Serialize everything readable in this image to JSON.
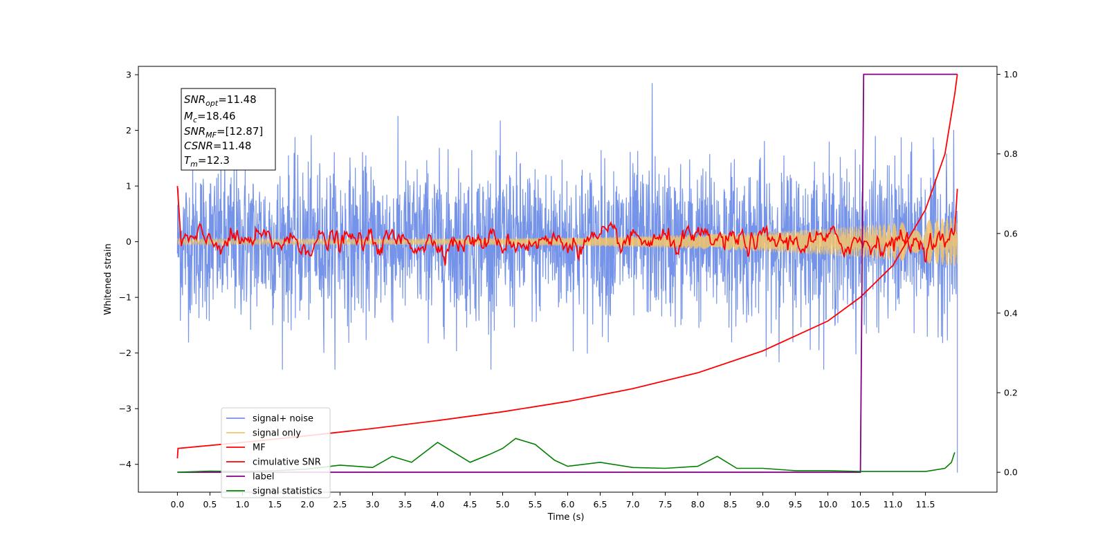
{
  "chart_data": {
    "type": "line",
    "xlabel": "Time (s)",
    "ylabel": "Whitened strain",
    "xlim": [
      -0.6,
      12.6
    ],
    "ylim_left": [
      -4.5,
      3.15
    ],
    "ylim_right": [
      -0.05,
      1.02
    ],
    "x_ticks": [
      "0.0",
      "0.5",
      "1.0",
      "1.5",
      "2.0",
      "2.5",
      "3.0",
      "3.5",
      "4.0",
      "4.5",
      "5.0",
      "5.5",
      "6.0",
      "6.5",
      "7.0",
      "7.5",
      "8.0",
      "8.5",
      "9.0",
      "9.5",
      "10.0",
      "10.5",
      "11.0",
      "11.5"
    ],
    "y_ticks_left": [
      "3",
      "2",
      "1",
      "0",
      "−1",
      "−2",
      "−3",
      "−4"
    ],
    "y_ticks_right": [
      "1.0",
      "0.8",
      "0.6",
      "0.4",
      "0.2",
      "0.0"
    ],
    "info_box": {
      "snr_opt": {
        "sym": "SNR",
        "sub": "opt",
        "val": "=11.48"
      },
      "mc": {
        "sym": "M",
        "sub": "c",
        "val": "=18.46"
      },
      "snr_mf": {
        "sym": "SNR",
        "sub": "MF",
        "val": "=[12.87]"
      },
      "csnr": {
        "sym": "CSNR",
        "sub": "",
        "val": "=11.48"
      },
      "tm": {
        "sym": "T",
        "sub": "m",
        "val": "=12.3"
      }
    },
    "legend_position": "lower-left",
    "series": [
      {
        "name": "signal+ noise",
        "color": "#7593e8",
        "axis": "left",
        "description_values": {
          "mean": 0,
          "std": 0.6,
          "x_range": [
            0,
            11.99
          ],
          "peak": 2.85,
          "peak_x": 7.3,
          "end_spike": -4.15
        }
      },
      {
        "name": "signal only",
        "color": "#f2c46b",
        "axis": "left",
        "chirp": {
          "amp_start": 0.05,
          "amp_end": 0.45,
          "x_range": [
            0,
            11.99
          ]
        }
      },
      {
        "name": "MF",
        "color": "#ff0000",
        "axis": "left",
        "values_summary": {
          "start": 1.0,
          "baseline": 0.0,
          "end": 0.95
        }
      },
      {
        "name": "cimulative SNR",
        "color": "#ff0000",
        "axis": "right",
        "x": [
          0.0,
          0.01,
          1.0,
          2.0,
          3.0,
          4.0,
          5.0,
          6.0,
          7.0,
          8.0,
          9.0,
          10.0,
          10.5,
          11.0,
          11.5,
          11.8,
          11.95,
          11.99
        ],
        "values": [
          0.035,
          0.06,
          0.075,
          0.092,
          0.11,
          0.13,
          0.152,
          0.178,
          0.21,
          0.25,
          0.305,
          0.38,
          0.44,
          0.52,
          0.66,
          0.8,
          0.95,
          1.0
        ]
      },
      {
        "name": "label",
        "color": "#800080",
        "axis": "right",
        "x": [
          0.0,
          10.5,
          10.55,
          11.99
        ],
        "values": [
          0.0,
          0.0,
          1.0,
          1.0
        ]
      },
      {
        "name": "signal statistics",
        "color": "#008000",
        "axis": "right",
        "x": [
          0.0,
          0.5,
          1.0,
          1.5,
          2.0,
          2.5,
          3.0,
          3.3,
          3.6,
          4.0,
          4.2,
          4.5,
          4.8,
          5.0,
          5.2,
          5.5,
          5.8,
          6.0,
          6.5,
          7.0,
          7.5,
          8.0,
          8.3,
          8.6,
          9.0,
          9.5,
          10.0,
          10.5,
          11.0,
          11.5,
          11.8,
          11.9,
          11.95
        ],
        "values": [
          0.0,
          0.003,
          0.002,
          0.004,
          0.008,
          0.018,
          0.012,
          0.04,
          0.025,
          0.075,
          0.055,
          0.025,
          0.045,
          0.06,
          0.085,
          0.07,
          0.03,
          0.015,
          0.025,
          0.012,
          0.01,
          0.015,
          0.04,
          0.01,
          0.01,
          0.004,
          0.004,
          0.002,
          0.002,
          0.002,
          0.01,
          0.025,
          0.05
        ]
      }
    ]
  }
}
